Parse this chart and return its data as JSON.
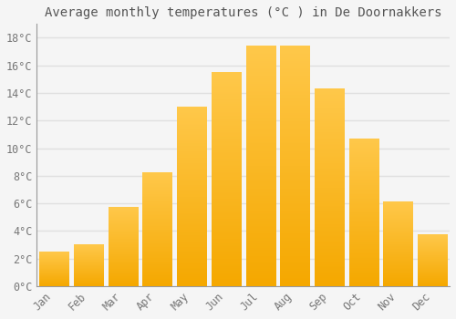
{
  "title": "Average monthly temperatures (°C ) in De Doornakkers",
  "months": [
    "Jan",
    "Feb",
    "Mar",
    "Apr",
    "May",
    "Jun",
    "Jul",
    "Aug",
    "Sep",
    "Oct",
    "Nov",
    "Dec"
  ],
  "values": [
    2.5,
    3.0,
    5.7,
    8.2,
    13.0,
    15.5,
    17.4,
    17.4,
    14.3,
    10.7,
    6.1,
    3.7
  ],
  "ylim": [
    0,
    19
  ],
  "yticks": [
    0,
    2,
    4,
    6,
    8,
    10,
    12,
    14,
    16,
    18
  ],
  "ytick_labels": [
    "0°C",
    "2°C",
    "4°C",
    "6°C",
    "8°C",
    "10°C",
    "12°C",
    "14°C",
    "16°C",
    "18°C"
  ],
  "background_color": "#f5f5f5",
  "grid_color": "#e0e0e0",
  "bar_color_bottom": "#F5A800",
  "bar_color_top": "#FFC84A",
  "title_fontsize": 10,
  "tick_fontsize": 8.5,
  "bar_width": 0.85
}
